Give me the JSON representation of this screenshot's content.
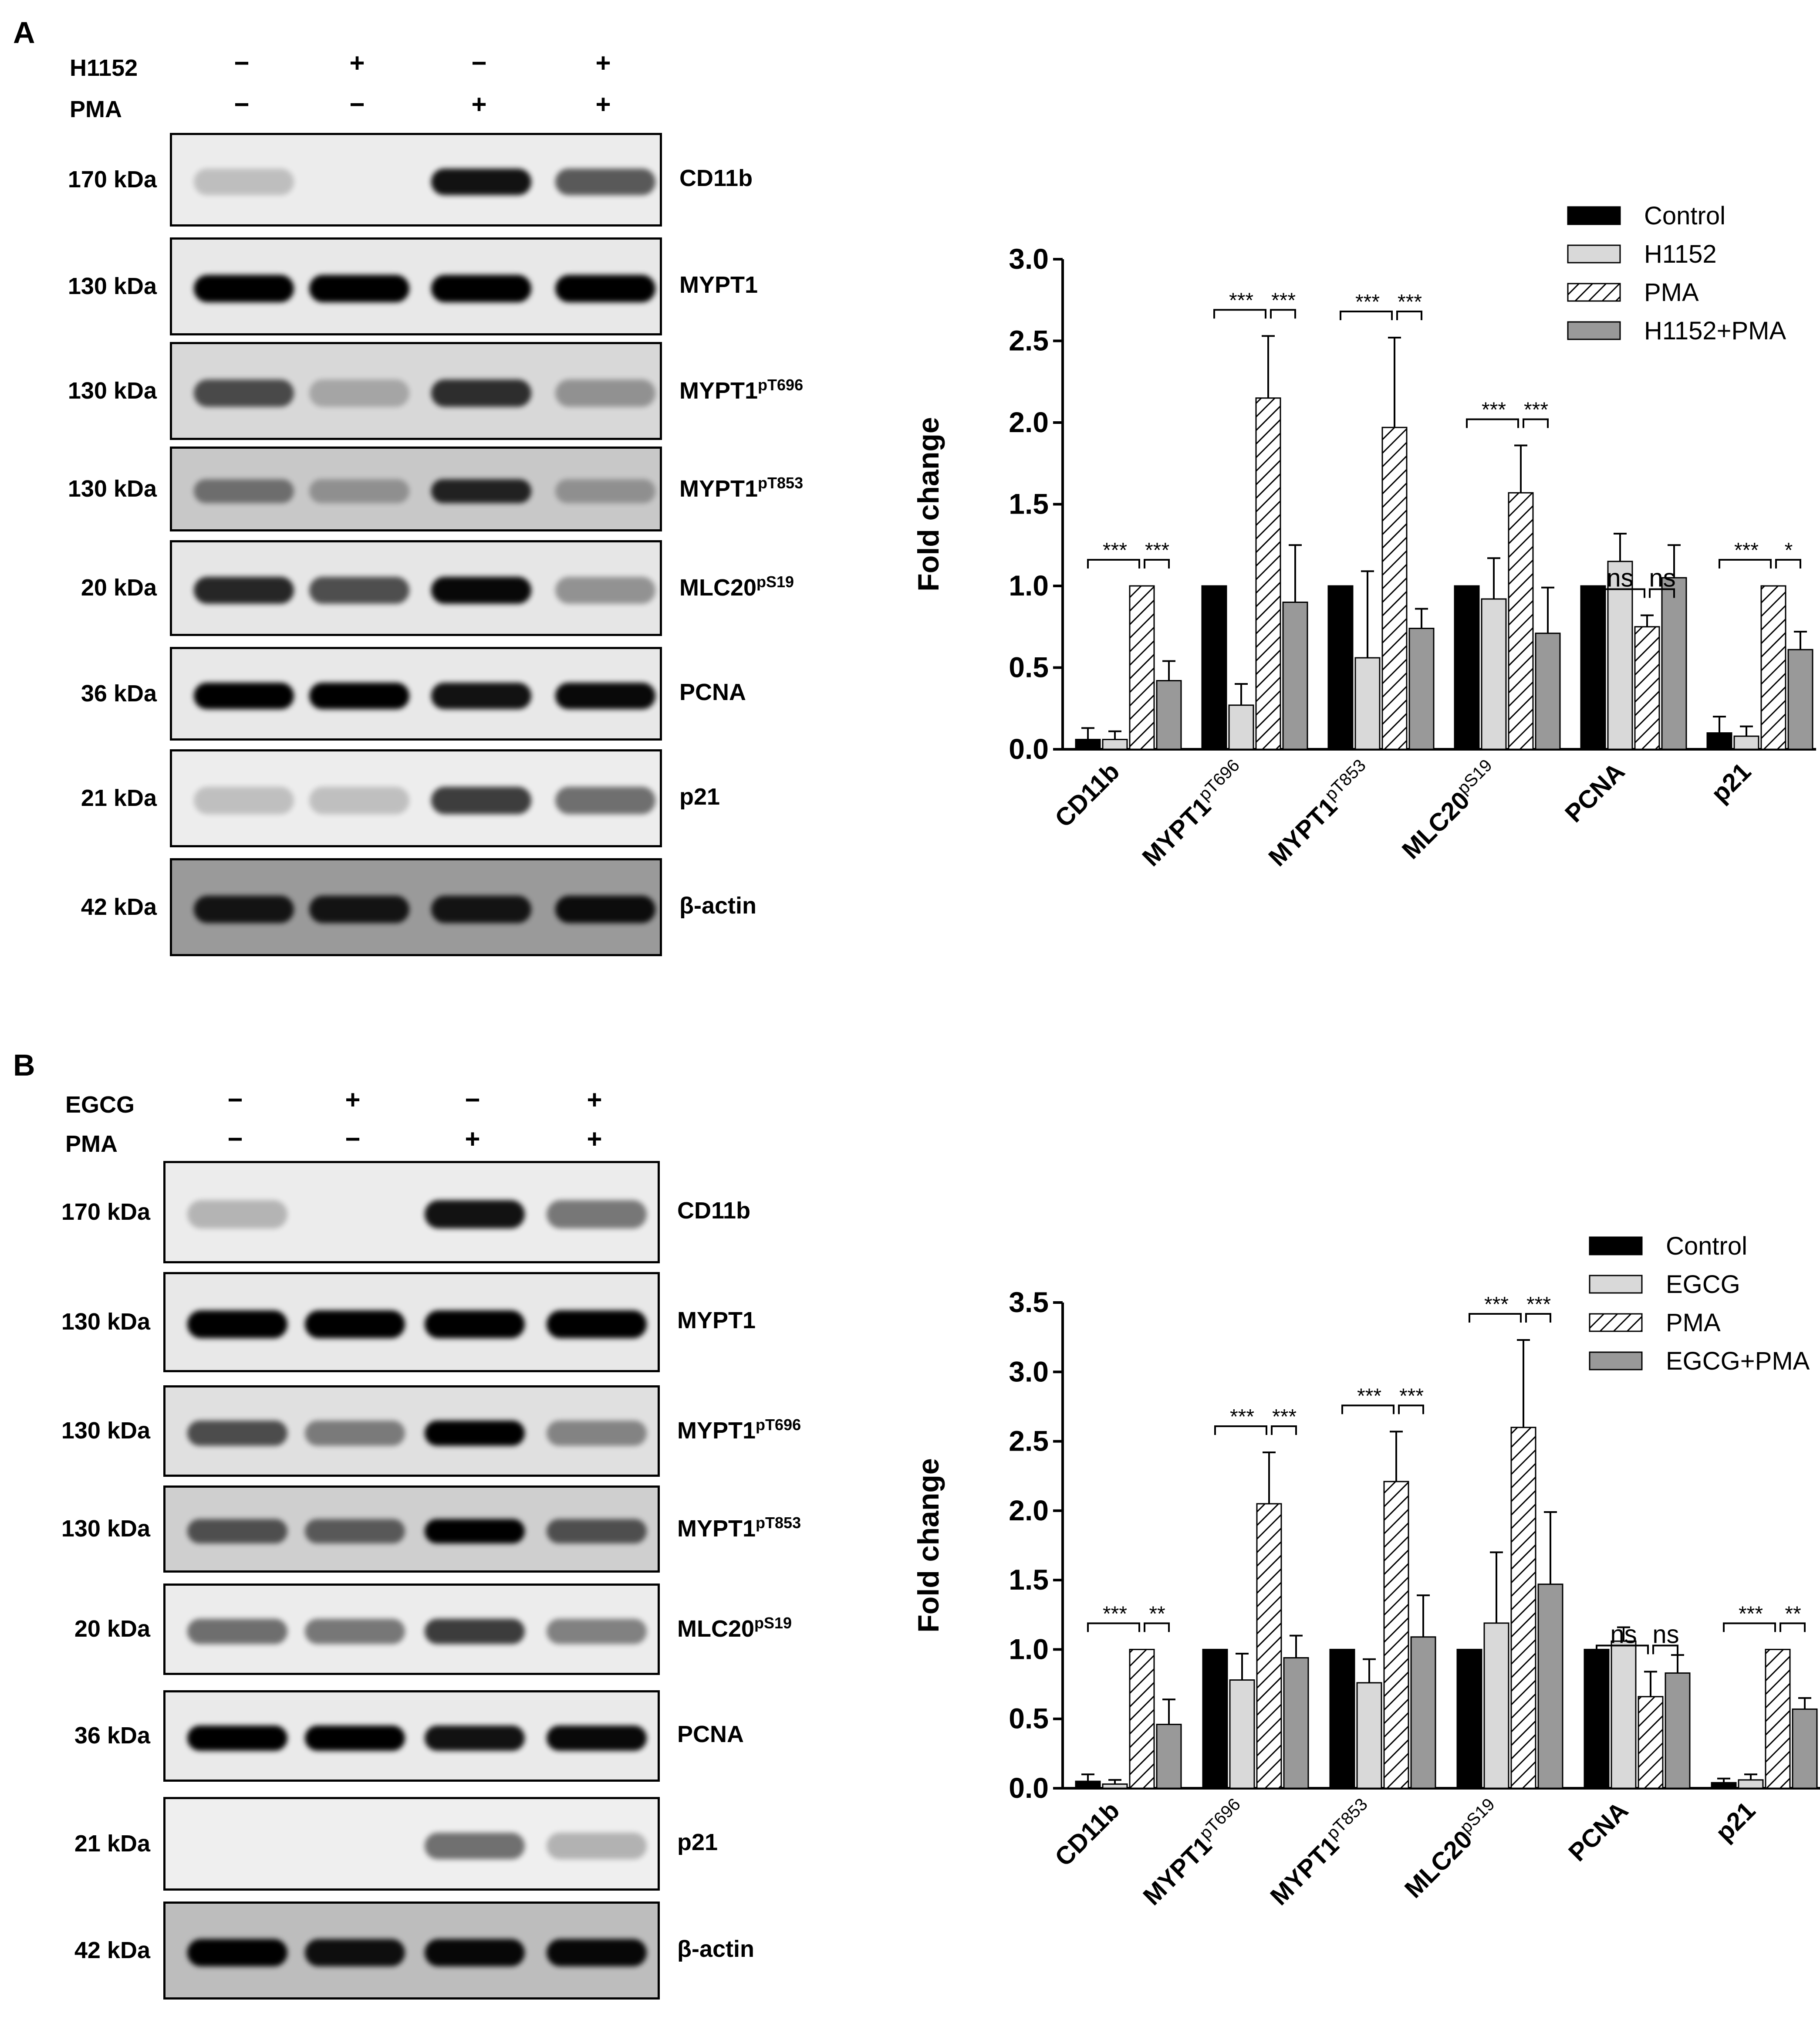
{
  "panels": [
    {
      "letter": "A",
      "treatments": [
        {
          "name": "H1152",
          "signs": [
            "−",
            "+",
            "−",
            "+"
          ]
        },
        {
          "name": "PMA",
          "signs": [
            "−",
            "−",
            "+",
            "+"
          ]
        }
      ],
      "blots": [
        {
          "kda": "170 kDa",
          "protein": "CD11b",
          "sup": "",
          "bands": [
            0.05,
            0.0,
            0.9,
            0.55
          ],
          "bg": "#ececec"
        },
        {
          "kda": "130 kDa",
          "protein": "MYPT1",
          "sup": "",
          "bands": [
            1.0,
            1.0,
            1.0,
            1.0
          ],
          "bg": "#e8e8e8"
        },
        {
          "kda": "130 kDa",
          "protein": "MYPT1",
          "sup": "pT696",
          "bands": [
            0.6,
            0.1,
            0.75,
            0.2
          ],
          "bg": "#d8d8d8"
        },
        {
          "kda": "130 kDa",
          "protein": "MYPT1",
          "sup": "pT853",
          "bands": [
            0.35,
            0.15,
            0.8,
            0.15
          ],
          "bg": "#c8c8c8"
        },
        {
          "kda": "20 kDa",
          "protein": "MLC20",
          "sup": "pS19",
          "bands": [
            0.8,
            0.6,
            0.95,
            0.25
          ],
          "bg": "#e6e6e6"
        },
        {
          "kda": "36 kDa",
          "protein": "PCNA",
          "sup": "",
          "bands": [
            1.0,
            1.0,
            0.9,
            0.95
          ],
          "bg": "#e8e8e8"
        },
        {
          "kda": "21 kDa",
          "protein": "p21",
          "sup": "",
          "bands": [
            0.05,
            0.05,
            0.7,
            0.45
          ],
          "bg": "#ededed"
        },
        {
          "kda": "42 kDa",
          "protein": "β-actin",
          "sup": "",
          "bands": [
            0.85,
            0.85,
            0.85,
            0.9
          ],
          "bg": "#9a9a9a"
        }
      ]
    },
    {
      "letter": "B",
      "treatments": [
        {
          "name": "EGCG",
          "signs": [
            "−",
            "+",
            "−",
            "+"
          ]
        },
        {
          "name": "PMA",
          "signs": [
            "−",
            "−",
            "+",
            "+"
          ]
        }
      ],
      "blots": [
        {
          "kda": "170 kDa",
          "protein": "CD11b",
          "sup": "",
          "bands": [
            0.1,
            0.0,
            0.9,
            0.4
          ],
          "bg": "#ececec"
        },
        {
          "kda": "130 kDa",
          "protein": "MYPT1",
          "sup": "",
          "bands": [
            1.0,
            1.0,
            1.0,
            1.0
          ],
          "bg": "#e8e8e8"
        },
        {
          "kda": "130 kDa",
          "protein": "MYPT1",
          "sup": "pT696",
          "bands": [
            0.6,
            0.35,
            1.0,
            0.3
          ],
          "bg": "#e0e0e0"
        },
        {
          "kda": "130 kDa",
          "protein": "MYPT1",
          "sup": "pT853",
          "bands": [
            0.55,
            0.5,
            1.0,
            0.55
          ],
          "bg": "#cfcfcf"
        },
        {
          "kda": "20 kDa",
          "protein": "MLC20",
          "sup": "pS19",
          "bands": [
            0.45,
            0.4,
            0.7,
            0.35
          ],
          "bg": "#ececec"
        },
        {
          "kda": "36 kDa",
          "protein": "PCNA",
          "sup": "",
          "bands": [
            1.0,
            1.0,
            0.9,
            0.95
          ],
          "bg": "#eaeaea"
        },
        {
          "kda": "21 kDa",
          "protein": "p21",
          "sup": "",
          "bands": [
            0.0,
            0.0,
            0.45,
            0.12
          ],
          "bg": "#efefef"
        },
        {
          "kda": "42 kDa",
          "protein": "β-actin",
          "sup": "",
          "bands": [
            1.0,
            0.9,
            0.95,
            0.95
          ],
          "bg": "#bdbdbd"
        }
      ]
    }
  ],
  "chart_data": [
    {
      "type": "bar",
      "ylabel": "Fold change",
      "ylim": [
        0,
        3.0
      ],
      "yticks": [
        "0.0",
        "0.5",
        "1.0",
        "1.5",
        "2.0",
        "2.5",
        "3.0"
      ],
      "categories": [
        "CD11b",
        "MYPT1",
        "MYPT1",
        "MLC20",
        "PCNA",
        "p21"
      ],
      "category_sups": [
        "",
        "pT696",
        "pT853",
        "pS19",
        "",
        ""
      ],
      "series": [
        {
          "name": "Control",
          "style": "black",
          "values": [
            0.06,
            1.0,
            1.0,
            1.0,
            1.0,
            0.1
          ],
          "errors": [
            0.07,
            0.0,
            0.0,
            0.0,
            0.0,
            0.1
          ]
        },
        {
          "name": "H1152",
          "style": "light",
          "values": [
            0.06,
            0.27,
            0.56,
            0.92,
            1.15,
            0.08
          ],
          "errors": [
            0.05,
            0.13,
            0.53,
            0.25,
            0.17,
            0.06
          ]
        },
        {
          "name": "PMA",
          "style": "hatch",
          "values": [
            1.0,
            2.15,
            1.97,
            1.57,
            0.75,
            1.0
          ],
          "errors": [
            0.0,
            0.38,
            0.55,
            0.29,
            0.07,
            0.0
          ]
        },
        {
          "name": "H1152+PMA",
          "style": "gray",
          "values": [
            0.42,
            0.9,
            0.74,
            0.71,
            1.05,
            0.61
          ],
          "errors": [
            0.12,
            0.35,
            0.12,
            0.28,
            0.2,
            0.11
          ]
        }
      ],
      "significance": [
        [
          "***",
          "***"
        ],
        [
          "***",
          "***"
        ],
        [
          "***",
          "***"
        ],
        [
          "***",
          "***"
        ],
        [
          "ns",
          "ns"
        ],
        [
          "***",
          "*"
        ]
      ]
    },
    {
      "type": "bar",
      "ylabel": "Fold change",
      "ylim": [
        0,
        3.5
      ],
      "yticks": [
        "0.0",
        "0.5",
        "1.0",
        "1.5",
        "2.0",
        "2.5",
        "3.0",
        "3.5"
      ],
      "categories": [
        "CD11b",
        "MYPT1",
        "MYPT1",
        "MLC20",
        "PCNA",
        "p21"
      ],
      "category_sups": [
        "",
        "pT696",
        "pT853",
        "pS19",
        "",
        ""
      ],
      "series": [
        {
          "name": "Control",
          "style": "black",
          "values": [
            0.05,
            1.0,
            1.0,
            1.0,
            1.0,
            0.04
          ],
          "errors": [
            0.05,
            0.0,
            0.0,
            0.0,
            0.0,
            0.03
          ]
        },
        {
          "name": "EGCG",
          "style": "light",
          "values": [
            0.03,
            0.78,
            0.76,
            1.19,
            1.06,
            0.06
          ],
          "errors": [
            0.03,
            0.19,
            0.17,
            0.51,
            0.1,
            0.04
          ]
        },
        {
          "name": "PMA",
          "style": "hatch",
          "values": [
            1.0,
            2.05,
            2.21,
            2.6,
            0.66,
            1.0
          ],
          "errors": [
            0.0,
            0.37,
            0.36,
            0.63,
            0.18,
            0.0
          ]
        },
        {
          "name": "EGCG+PMA",
          "style": "gray",
          "values": [
            0.46,
            0.94,
            1.09,
            1.47,
            0.83,
            0.57
          ],
          "errors": [
            0.18,
            0.16,
            0.3,
            0.52,
            0.13,
            0.08
          ]
        }
      ],
      "significance": [
        [
          "***",
          "**"
        ],
        [
          "***",
          "***"
        ],
        [
          "***",
          "***"
        ],
        [
          "***",
          "***"
        ],
        [
          "ns",
          "ns"
        ],
        [
          "***",
          "**"
        ]
      ]
    }
  ]
}
